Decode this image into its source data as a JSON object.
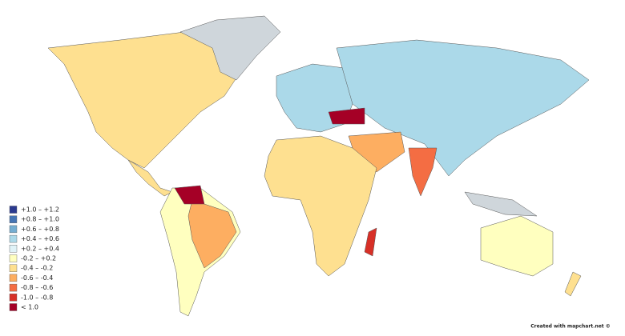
{
  "legend": {
    "items": [
      {
        "label": "+1.0 – +1.2",
        "color": "#2b3a8f"
      },
      {
        "label": "+0.8 – +1.0",
        "color": "#4575b4"
      },
      {
        "label": "+0.6 – +0.8",
        "color": "#74add1"
      },
      {
        "label": "+0.4 – +0.6",
        "color": "#abd9e9"
      },
      {
        "label": "+0.2 – +0.4",
        "color": "#e0f3f8"
      },
      {
        "label": "-0.2 – +0.2",
        "color": "#ffffbf"
      },
      {
        "label": "-0.4 – -0.2",
        "color": "#fee090"
      },
      {
        "label": "-0.6 – -0.4",
        "color": "#fdae61"
      },
      {
        "label": "-0.8 – -0.6",
        "color": "#f46d43"
      },
      {
        "label": "-1.0 – -0.8",
        "color": "#d73027"
      },
      {
        "label": "< 1.0",
        "color": "#a50026"
      }
    ]
  },
  "credit": "Created with mapchart.net ©"
}
